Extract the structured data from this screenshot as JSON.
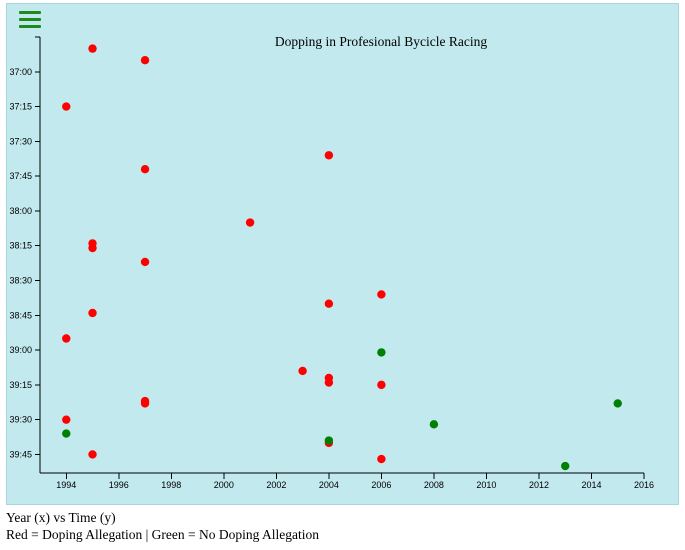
{
  "menu": {
    "icon": "hamburger-menu-icon",
    "color": "#1e8a1e"
  },
  "captions": {
    "line1": "Year (x) vs Time (y)",
    "line2": "Red = Doping Allegation | Green = No Doping Allegation"
  },
  "chart_data": {
    "type": "scatter",
    "title": "Dopping in Profesional Bycicle Racing",
    "xlabel": "Year",
    "ylabel": "Time",
    "xlim": [
      1993,
      2016
    ],
    "ylim_seconds": [
      2205,
      2393
    ],
    "grid": false,
    "x_ticks": [
      1994,
      1996,
      1998,
      2000,
      2002,
      2004,
      2006,
      2008,
      2010,
      2012,
      2014,
      2016
    ],
    "y_ticks": [
      {
        "seconds": 2220,
        "label": "37:00"
      },
      {
        "seconds": 2235,
        "label": "37:15"
      },
      {
        "seconds": 2250,
        "label": "37:30"
      },
      {
        "seconds": 2265,
        "label": "37:45"
      },
      {
        "seconds": 2280,
        "label": "38:00"
      },
      {
        "seconds": 2295,
        "label": "38:15"
      },
      {
        "seconds": 2310,
        "label": "38:30"
      },
      {
        "seconds": 2325,
        "label": "38:45"
      },
      {
        "seconds": 2340,
        "label": "39:00"
      },
      {
        "seconds": 2355,
        "label": "39:15"
      },
      {
        "seconds": 2370,
        "label": "39:30"
      },
      {
        "seconds": 2385,
        "label": "39:45"
      }
    ],
    "colors": {
      "doping": "#ff0000",
      "clean": "#008000",
      "background": "#c2e9ee"
    },
    "series": [
      {
        "name": "Doping Allegation",
        "color": "#ff0000",
        "points": [
          {
            "year": 1995,
            "seconds": 2210
          },
          {
            "year": 1997,
            "seconds": 2215
          },
          {
            "year": 1994,
            "seconds": 2235
          },
          {
            "year": 2004,
            "seconds": 2256
          },
          {
            "year": 1997,
            "seconds": 2262
          },
          {
            "year": 2001,
            "seconds": 2285
          },
          {
            "year": 1995,
            "seconds": 2294
          },
          {
            "year": 1995,
            "seconds": 2296
          },
          {
            "year": 1997,
            "seconds": 2302
          },
          {
            "year": 2006,
            "seconds": 2316
          },
          {
            "year": 2004,
            "seconds": 2320
          },
          {
            "year": 1995,
            "seconds": 2324
          },
          {
            "year": 1994,
            "seconds": 2335
          },
          {
            "year": 2003,
            "seconds": 2349
          },
          {
            "year": 2004,
            "seconds": 2352
          },
          {
            "year": 2004,
            "seconds": 2354
          },
          {
            "year": 2006,
            "seconds": 2355
          },
          {
            "year": 1997,
            "seconds": 2362
          },
          {
            "year": 1997,
            "seconds": 2363
          },
          {
            "year": 1994,
            "seconds": 2370
          },
          {
            "year": 2004,
            "seconds": 2380
          },
          {
            "year": 1995,
            "seconds": 2385
          },
          {
            "year": 2006,
            "seconds": 2387
          }
        ]
      },
      {
        "name": "No Doping Allegation",
        "color": "#008000",
        "points": [
          {
            "year": 2006,
            "seconds": 2341
          },
          {
            "year": 2015,
            "seconds": 2363
          },
          {
            "year": 2008,
            "seconds": 2372
          },
          {
            "year": 1994,
            "seconds": 2376
          },
          {
            "year": 2004,
            "seconds": 2379
          },
          {
            "year": 2013,
            "seconds": 2390
          }
        ]
      }
    ]
  }
}
